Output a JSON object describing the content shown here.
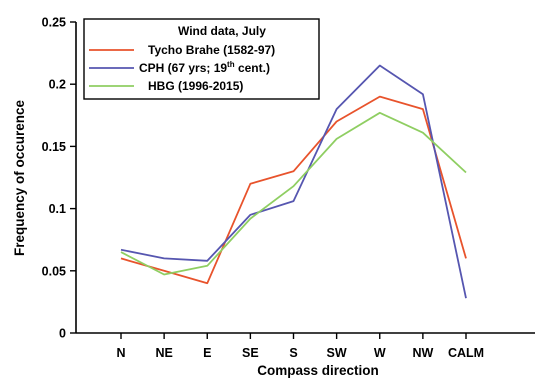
{
  "chart_data": {
    "type": "line",
    "title": "",
    "xlabel": "Compass direction",
    "ylabel": "Frequency of occurence",
    "categories": [
      "N",
      "NE",
      "E",
      "SE",
      "S",
      "SW",
      "W",
      "NW",
      "CALM"
    ],
    "ylim": [
      0,
      0.25
    ],
    "yticks": [
      "0",
      "0.05",
      "0.1",
      "0.15",
      "0.2",
      "0.25"
    ],
    "ytick_values": [
      0,
      0.05,
      0.1,
      0.15,
      0.2,
      0.25
    ],
    "grid": false,
    "legend": {
      "title": "Wind data, July",
      "placement": "top-left"
    },
    "series": [
      {
        "name": "Tycho Brahe (1582-97)",
        "color": "#e8532c",
        "values": [
          0.06,
          0.05,
          0.04,
          0.12,
          0.13,
          0.17,
          0.19,
          0.18,
          0.06
        ]
      },
      {
        "name_main": "CPH (67 yrs; 19",
        "name_sup": "th",
        "name_tail": " cent.)",
        "color": "#5656b0",
        "values": [
          0.067,
          0.06,
          0.058,
          0.095,
          0.106,
          0.18,
          0.215,
          0.192,
          0.028
        ]
      },
      {
        "name": "HBG (1996-2015)",
        "color": "#8fce62",
        "values": [
          0.065,
          0.047,
          0.054,
          0.092,
          0.118,
          0.156,
          0.177,
          0.161,
          0.129
        ]
      }
    ]
  }
}
